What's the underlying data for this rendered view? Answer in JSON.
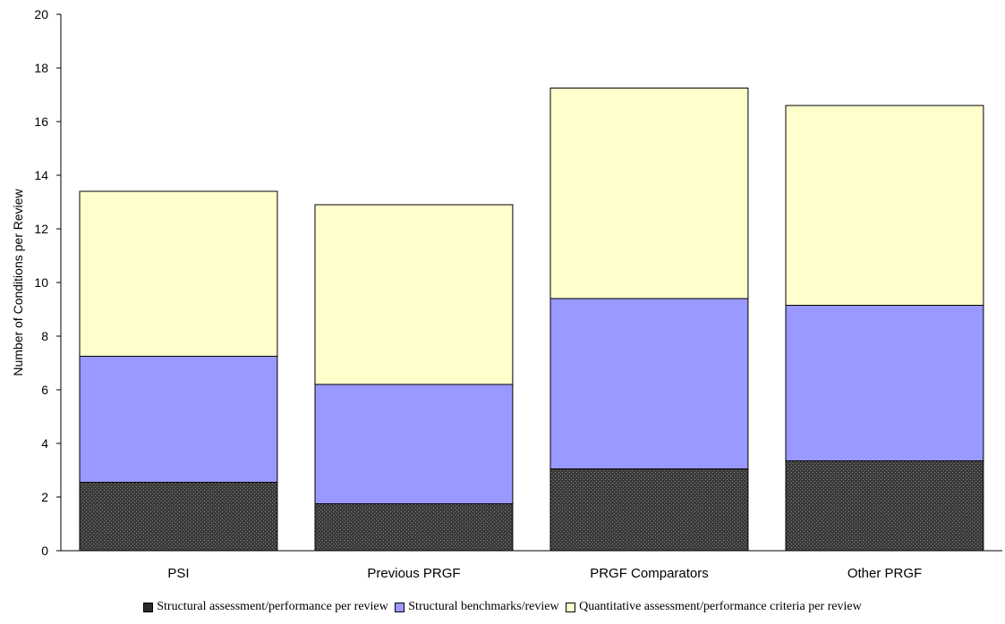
{
  "chart_data": {
    "type": "bar",
    "stacked": true,
    "categories": [
      "PSI",
      "Previous PRGF",
      "PRGF Comparators",
      "Other PRGF"
    ],
    "series": [
      {
        "name": "Structural assessment/performance per review",
        "values": [
          2.55,
          1.75,
          3.05,
          3.35
        ],
        "color": "#2b2b2b",
        "pattern": "dotted"
      },
      {
        "name": "Structural benchmarks/review",
        "values": [
          4.7,
          4.45,
          6.35,
          5.8
        ],
        "color": "#9999ff"
      },
      {
        "name": "Quantitative assessment/performance criteria per review",
        "values": [
          6.15,
          6.7,
          7.85,
          7.45
        ],
        "color": "#ffffcc"
      }
    ],
    "ylabel": "Number of Conditions per Review",
    "xlabel": "",
    "ylim": [
      0,
      20
    ],
    "yticks": [
      0,
      2,
      4,
      6,
      8,
      10,
      12,
      14,
      16,
      18,
      20
    ],
    "grid": false,
    "legend_position": "bottom"
  }
}
